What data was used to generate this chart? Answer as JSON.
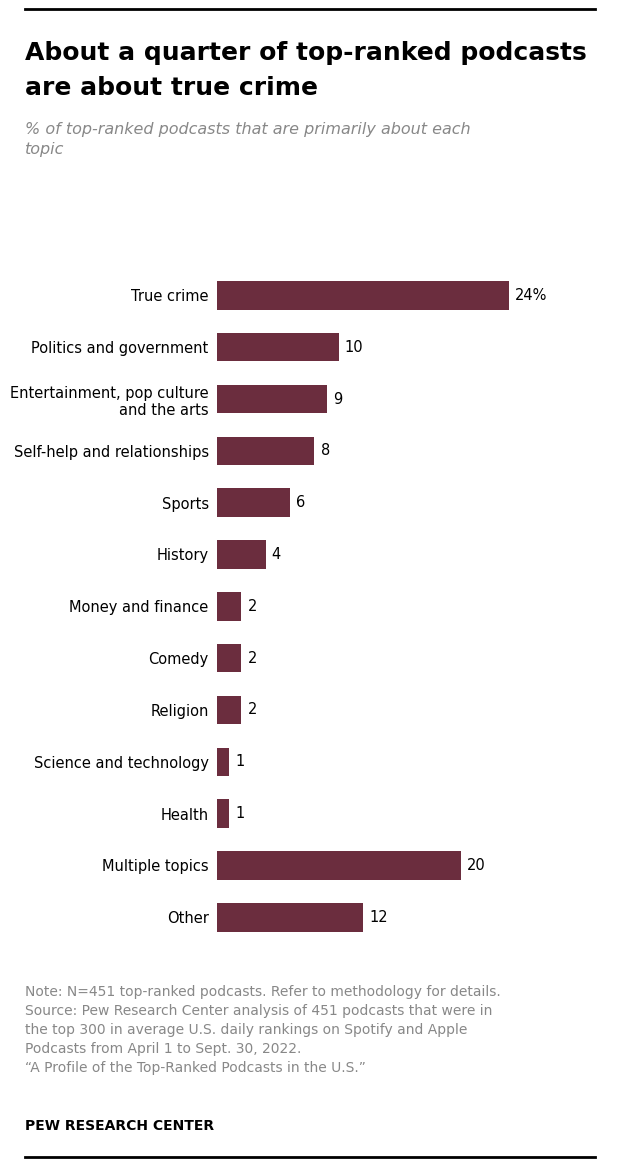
{
  "title_line1": "About a quarter of top-ranked podcasts",
  "title_line2": "are about true crime",
  "subtitle": "% of top-ranked podcasts that are primarily about each\ntopic",
  "categories": [
    "True crime",
    "Politics and government",
    "Entertainment, pop culture\nand the arts",
    "Self-help and relationships",
    "Sports",
    "History",
    "Money and finance",
    "Comedy",
    "Religion",
    "Science and technology",
    "Health",
    "Multiple topics",
    "Other"
  ],
  "values": [
    24,
    10,
    9,
    8,
    6,
    4,
    2,
    2,
    2,
    1,
    1,
    20,
    12
  ],
  "bar_color": "#6B2D3E",
  "value_labels": [
    "24%",
    "10",
    "9",
    "8",
    "6",
    "4",
    "2",
    "2",
    "2",
    "1",
    "1",
    "20",
    "12"
  ],
  "note_text": "Note: N=451 top-ranked podcasts. Refer to methodology for details.\nSource: Pew Research Center analysis of 451 podcasts that were in\nthe top 300 in average U.S. daily rankings on Spotify and Apple\nPodcasts from April 1 to Sept. 30, 2022.\n“A Profile of the Top-Ranked Podcasts in the U.S.”",
  "source_bold": "PEW RESEARCH CENTER",
  "background_color": "#ffffff",
  "title_fontsize": 18,
  "subtitle_fontsize": 11.5,
  "label_fontsize": 10.5,
  "value_fontsize": 10.5,
  "note_fontsize": 10,
  "xlim": [
    0,
    28
  ]
}
